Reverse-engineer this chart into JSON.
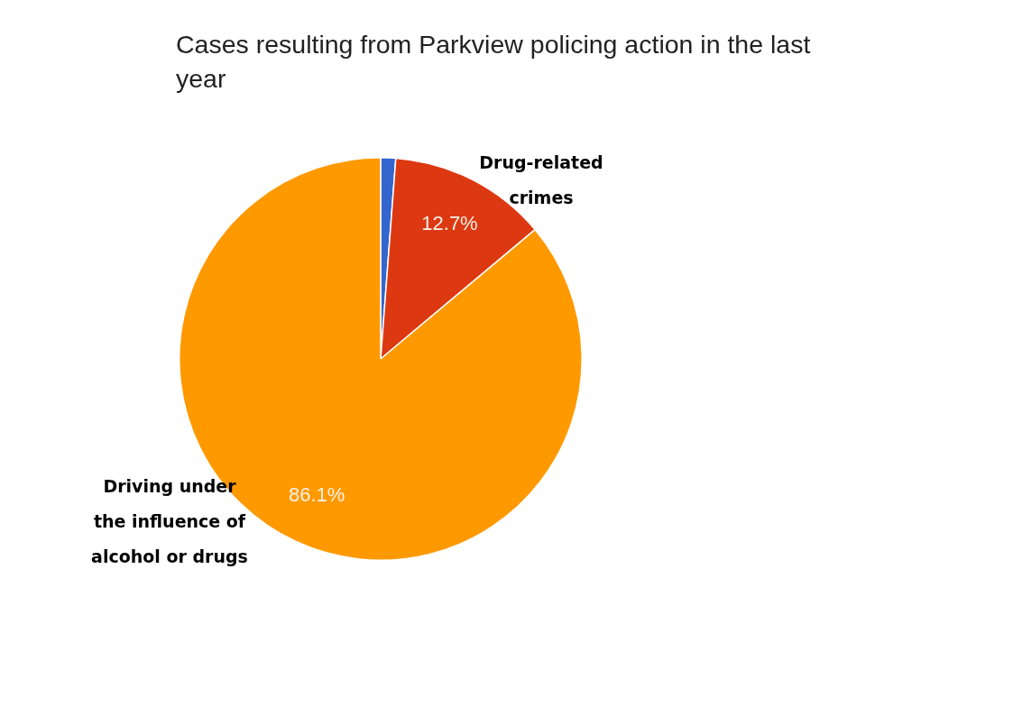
{
  "chart_data": {
    "type": "pie",
    "title": "Cases resulting from Parkview policing action in the last year",
    "categories": [
      null,
      "Drug-related crimes",
      "Driving under the influence of alcohol or drugs"
    ],
    "values": [
      1.2,
      12.7,
      86.1
    ],
    "colors": [
      "#3366cc",
      "#dc3912",
      "#ff9900"
    ],
    "value_labels": [
      null,
      "12.7%",
      "86.1%"
    ],
    "legend": false
  }
}
